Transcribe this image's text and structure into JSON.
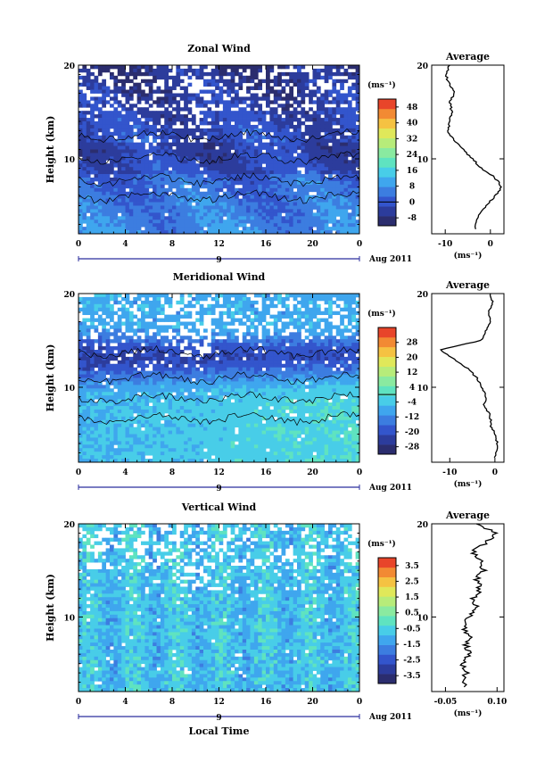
{
  "chart_data": [
    {
      "type": "heatmap",
      "title": "Zonal Wind",
      "ylabel": "Height (km)",
      "x_ticks": [
        "0",
        "4",
        "8",
        "12",
        "16",
        "20",
        "0"
      ],
      "y_ticks": [
        "10",
        "20"
      ],
      "xlim": [
        0,
        24
      ],
      "ylim": [
        2,
        20
      ],
      "date_marker": "9",
      "date_label": "Aug 2011",
      "colorbar": {
        "unit": "(ms⁻¹)",
        "ticks": [
          "48",
          "40",
          "32",
          "24",
          "16",
          "8",
          "0",
          "-8"
        ],
        "range": [
          -12,
          52
        ]
      },
      "profile_km_ms": [
        [
          2.5,
          -3.5
        ],
        [
          4,
          -2.5
        ],
        [
          5,
          -1
        ],
        [
          6,
          1
        ],
        [
          7,
          2.5
        ],
        [
          8,
          1
        ],
        [
          9,
          -2
        ],
        [
          10,
          -4
        ],
        [
          11,
          -6
        ],
        [
          12,
          -8
        ],
        [
          13,
          -9.5
        ],
        [
          14,
          -9
        ],
        [
          15,
          -8.5
        ],
        [
          16,
          -9
        ],
        [
          17,
          -8
        ],
        [
          18,
          -9
        ],
        [
          19,
          -10
        ],
        [
          20,
          -9
        ]
      ]
    },
    {
      "type": "heatmap",
      "title": "Meridional Wind",
      "ylabel": "Height (km)",
      "x_ticks": [
        "0",
        "4",
        "8",
        "12",
        "16",
        "20",
        "0"
      ],
      "y_ticks": [
        "10",
        "20"
      ],
      "xlim": [
        0,
        24
      ],
      "ylim": [
        2,
        20
      ],
      "date_marker": "9",
      "date_label": "Aug 2011",
      "colorbar": {
        "unit": "(ms⁻¹)",
        "ticks": [
          "28",
          "20",
          "12",
          "4",
          "-4",
          "-12",
          "-20",
          "-28"
        ],
        "range": [
          -32,
          36
        ]
      },
      "profile_km_ms": [
        [
          2.5,
          0
        ],
        [
          4,
          0.5
        ],
        [
          5,
          0
        ],
        [
          6,
          -1
        ],
        [
          7,
          -1
        ],
        [
          8,
          -2.5
        ],
        [
          9,
          -2
        ],
        [
          10,
          -3
        ],
        [
          11,
          -4
        ],
        [
          12,
          -6
        ],
        [
          13,
          -9
        ],
        [
          14,
          -12
        ],
        [
          15,
          -3
        ],
        [
          16,
          -2
        ],
        [
          17,
          -1
        ],
        [
          18,
          -1.5
        ],
        [
          19,
          -0.5
        ],
        [
          20,
          -1
        ]
      ]
    },
    {
      "type": "heatmap",
      "title": "Vertical Wind",
      "ylabel": "Height (km)",
      "xlabel": "Local Time",
      "x_ticks": [
        "0",
        "4",
        "8",
        "12",
        "16",
        "20",
        "0"
      ],
      "y_ticks": [
        "10",
        "20"
      ],
      "xlim": [
        0,
        24
      ],
      "ylim": [
        2,
        20
      ],
      "date_marker": "9",
      "date_label": "Aug 2011",
      "colorbar": {
        "unit": "(ms⁻¹)",
        "ticks": [
          "3.5",
          "2.5",
          "1.5",
          "0.5",
          "-0.5",
          "-1.5",
          "-2.5",
          "-3.5"
        ],
        "range": [
          -4,
          4
        ]
      },
      "profile_km_ms": [
        [
          2.5,
          0.0
        ],
        [
          4,
          0.01
        ],
        [
          5,
          0.0
        ],
        [
          6,
          0.02
        ],
        [
          7,
          0.01
        ],
        [
          8,
          0.02
        ],
        [
          9,
          0.0
        ],
        [
          10,
          0.02
        ],
        [
          11,
          0.04
        ],
        [
          12,
          0.03
        ],
        [
          13,
          0.05
        ],
        [
          14,
          0.04
        ],
        [
          15,
          0.06
        ],
        [
          16,
          0.05
        ],
        [
          17,
          0.03
        ],
        [
          18,
          0.07
        ],
        [
          19,
          0.1
        ],
        [
          20,
          0.04
        ]
      ]
    }
  ],
  "average_panels": [
    {
      "title": "Average",
      "x_ticks": [
        "-10",
        "0"
      ],
      "xlim": [
        -13,
        3
      ],
      "y_ticks": [
        "10",
        "20"
      ],
      "unit": "(ms⁻¹)"
    },
    {
      "title": "Average",
      "x_ticks": [
        "-10",
        "0"
      ],
      "xlim": [
        -14,
        2
      ],
      "y_ticks": [
        "10",
        "20"
      ],
      "unit": "(ms⁻¹)"
    },
    {
      "title": "Average",
      "x_ticks": [
        "-0.05",
        "0.10"
      ],
      "xlim": [
        -0.09,
        0.12
      ],
      "y_ticks": [
        "10",
        "20"
      ],
      "unit": "(ms⁻¹)"
    }
  ],
  "colors": {
    "colormap": [
      "#2b2d6e",
      "#2c3c9c",
      "#3355cc",
      "#3c7de0",
      "#3fa6ee",
      "#48cde8",
      "#5fe3c0",
      "#8aeaa0",
      "#b7ec7a",
      "#e0e85a",
      "#f5c242",
      "#f28a33",
      "#e8452a"
    ]
  }
}
